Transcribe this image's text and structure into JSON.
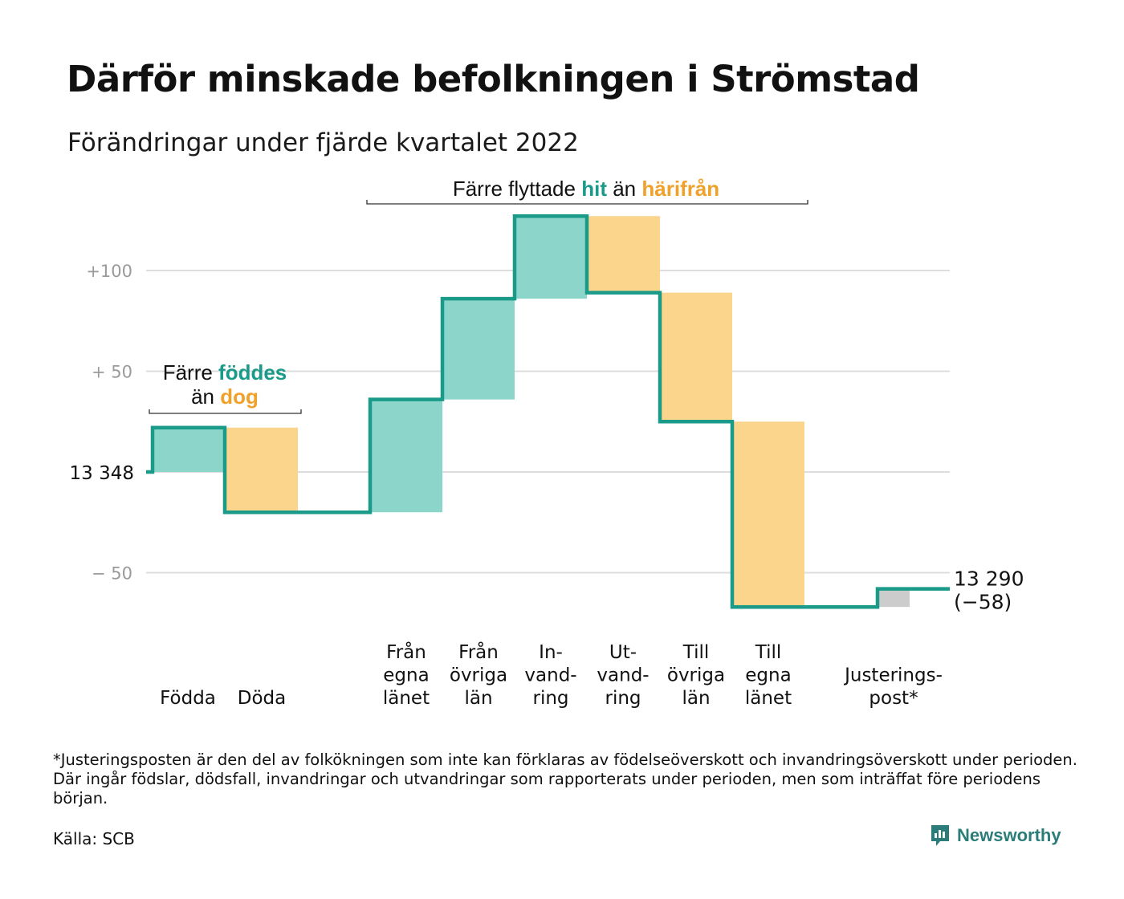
{
  "title": "Därför minskade befolkningen i Strömstad",
  "subtitle": "Förändringar under fjärde kvartalet 2022",
  "chart_data": {
    "type": "waterfall",
    "start_value": 13348,
    "start_label": "13 348",
    "end_value": 13290,
    "end_label": "13 290",
    "end_change_label": "(−58)",
    "y_ticks": [
      {
        "value": 100,
        "label": "+100"
      },
      {
        "value": 50,
        "label": "+ 50"
      },
      {
        "value": 0,
        "label": ""
      },
      {
        "value": -50,
        "label": "− 50"
      }
    ],
    "ylim": [
      -80,
      130
    ],
    "grid": true,
    "steps": [
      {
        "key": "fodda",
        "label": [
          "Födda"
        ],
        "value": 22,
        "kind": "in"
      },
      {
        "key": "doda",
        "label": [
          "Döda"
        ],
        "value": -42,
        "kind": "out"
      },
      {
        "key": "fran-egna",
        "label": [
          "Från",
          "egna",
          "länet"
        ],
        "value": 56,
        "kind": "in"
      },
      {
        "key": "fran-ovriga",
        "label": [
          "Från",
          "övriga",
          "län"
        ],
        "value": 50,
        "kind": "in"
      },
      {
        "key": "invandring",
        "label": [
          "In-",
          "vand-",
          "ring"
        ],
        "value": 41,
        "kind": "in"
      },
      {
        "key": "utvandring",
        "label": [
          "Ut-",
          "vand-",
          "ring"
        ],
        "value": -38,
        "kind": "out"
      },
      {
        "key": "till-ovriga",
        "label": [
          "Till",
          "övriga",
          "län"
        ],
        "value": -64,
        "kind": "out"
      },
      {
        "key": "till-egna",
        "label": [
          "Till",
          "egna",
          "länet"
        ],
        "value": -92,
        "kind": "out"
      },
      {
        "key": "justering",
        "label": [
          "Justerings-",
          "post*"
        ],
        "value": 9,
        "kind": "adj"
      }
    ],
    "annotations": [
      {
        "key": "births",
        "lines": [
          [
            {
              "text": "Färre ",
              "tone": "plain"
            },
            {
              "text": "föddes",
              "tone": "in"
            }
          ],
          [
            {
              "text": "än ",
              "tone": "plain"
            },
            {
              "text": "dog",
              "tone": "out"
            }
          ]
        ]
      },
      {
        "key": "moves",
        "lines": [
          [
            {
              "text": "Färre flyttade ",
              "tone": "plain"
            },
            {
              "text": "hit",
              "tone": "in"
            },
            {
              "text": " än ",
              "tone": "plain"
            },
            {
              "text": "härifrån",
              "tone": "out"
            }
          ]
        ]
      }
    ],
    "colors": {
      "in": "#8cd5cb",
      "out": "#fad58b",
      "adj": "#cccccc",
      "line": "#1a9a88",
      "in_text": "#1a9a88",
      "out_text": "#f0a12a",
      "grid": "#dddddd",
      "tick_text": "#9a9a9a"
    }
  },
  "footnote": "*Justeringsposten är den del av folkökningen som inte kan förklaras av födelseöverskott och invandringsöverskott under perioden. Där ingår födslar, dödsfall, invandringar och utvandringar som rapporterats under perioden, men som inträffat före periodens början.",
  "source": "Källa: SCB",
  "brand": {
    "name": "Newsworthy",
    "icon": "newsworthy-logo-icon"
  }
}
